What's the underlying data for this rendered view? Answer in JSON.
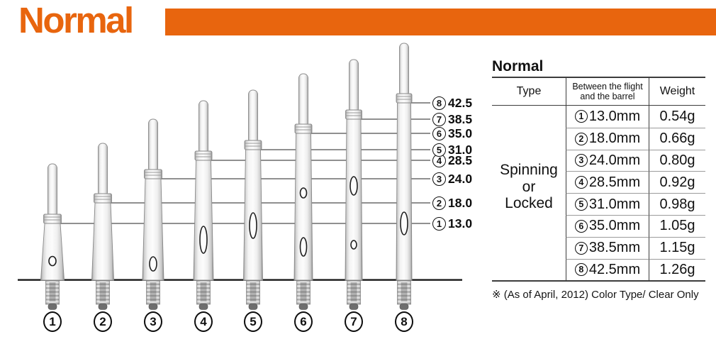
{
  "page_title": "Normal",
  "accent_color": "#E8650E",
  "diagram": {
    "shafts": [
      {
        "num": "1",
        "mm_label": "13.0"
      },
      {
        "num": "2",
        "mm_label": "18.0"
      },
      {
        "num": "3",
        "mm_label": "24.0"
      },
      {
        "num": "4",
        "mm_label": "28.5"
      },
      {
        "num": "5",
        "mm_label": "31.0"
      },
      {
        "num": "6",
        "mm_label": "35.0"
      },
      {
        "num": "7",
        "mm_label": "38.5"
      },
      {
        "num": "8",
        "mm_label": "42.5"
      }
    ]
  },
  "table": {
    "title": "Normal",
    "col_type": "Type",
    "col_between_line1": "Between the flight",
    "col_between_line2": "and the barrel",
    "col_weight": "Weight",
    "type_value_lines": [
      "Spinning",
      "or",
      "Locked"
    ],
    "rows": [
      {
        "num": "1",
        "size": "13.0mm",
        "weight": "0.54g"
      },
      {
        "num": "2",
        "size": "18.0mm",
        "weight": "0.66g"
      },
      {
        "num": "3",
        "size": "24.0mm",
        "weight": "0.80g"
      },
      {
        "num": "4",
        "size": "28.5mm",
        "weight": "0.92g"
      },
      {
        "num": "5",
        "size": "31.0mm",
        "weight": "0.98g"
      },
      {
        "num": "6",
        "size": "35.0mm",
        "weight": "1.05g"
      },
      {
        "num": "7",
        "size": "38.5mm",
        "weight": "1.15g"
      },
      {
        "num": "8",
        "size": "42.5mm",
        "weight": "1.26g"
      }
    ],
    "note": "※ (As of April, 2012) Color Type/ Clear Only"
  }
}
